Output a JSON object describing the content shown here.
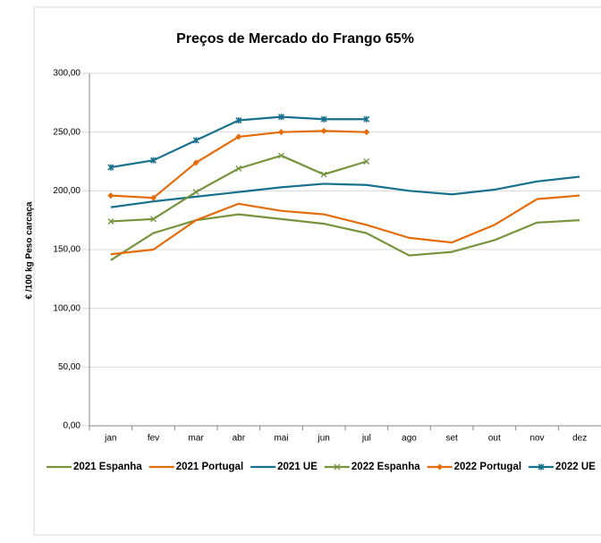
{
  "chart_data": {
    "type": "line",
    "title": "Preços de Mercado do Frango 65%",
    "y_label": "€ /100 kg Peso carcaça",
    "categories": [
      "jan",
      "fev",
      "mar",
      "abr",
      "mai",
      "jun",
      "jul",
      "ago",
      "set",
      "out",
      "nov",
      "dez"
    ],
    "ylim": [
      0,
      300
    ],
    "yticks": [
      {
        "value": 0,
        "label": "0,00"
      },
      {
        "value": 50,
        "label": "50,00"
      },
      {
        "value": 100,
        "label": "100,00"
      },
      {
        "value": 150,
        "label": "150,00"
      },
      {
        "value": 200,
        "label": "200,00"
      },
      {
        "value": 250,
        "label": "250,00"
      },
      {
        "value": 300,
        "label": "300,00"
      }
    ],
    "grid": true,
    "legend": "bottom",
    "series": [
      {
        "name": "2021 Espanha",
        "color": "#77933c",
        "marker": "none",
        "values": [
          141,
          164,
          175,
          180,
          176,
          172,
          164,
          145,
          148,
          158,
          173,
          175
        ]
      },
      {
        "name": "2021 Portugal",
        "color": "#e46c0a",
        "marker": "none",
        "values": [
          146,
          150,
          175,
          189,
          183,
          180,
          171,
          160,
          156,
          171,
          193,
          196
        ]
      },
      {
        "name": "2021 UE",
        "color": "#17708d",
        "marker": "none",
        "values": [
          186,
          191,
          195,
          199,
          203,
          206,
          205,
          200,
          197,
          201,
          208,
          212
        ]
      },
      {
        "name": "2022 Espanha",
        "color": "#77933c",
        "marker": "x",
        "values": [
          174,
          176,
          199,
          219,
          230,
          214,
          225,
          null,
          null,
          null,
          null,
          null
        ]
      },
      {
        "name": "2022 Portugal",
        "color": "#e46c0a",
        "marker": "diamond",
        "values": [
          196,
          194,
          224,
          246,
          250,
          251,
          250,
          null,
          null,
          null,
          null,
          null
        ]
      },
      {
        "name": "2022 UE",
        "color": "#17708d",
        "marker": "star",
        "values": [
          220,
          226,
          243,
          260,
          263,
          261,
          261,
          null,
          null,
          null,
          null,
          null
        ]
      }
    ]
  }
}
